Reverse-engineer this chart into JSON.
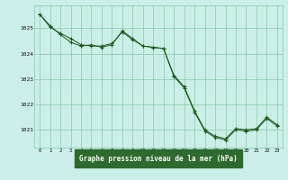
{
  "title": "Graphe pression niveau de la mer (hPa)",
  "background_color": "#cceee8",
  "grid_color": "#88ccaa",
  "line_color": "#1a5c1a",
  "label_bg": "#2d6a2d",
  "label_fg": "#ffffff",
  "xlim": [
    -0.5,
    23.5
  ],
  "ylim": [
    1020.3,
    1025.9
  ],
  "yticks": [
    1021,
    1022,
    1023,
    1024,
    1025
  ],
  "xticks": [
    0,
    1,
    2,
    3,
    4,
    5,
    6,
    7,
    8,
    9,
    10,
    11,
    12,
    13,
    14,
    15,
    16,
    17,
    18,
    19,
    20,
    21,
    22,
    23
  ],
  "series1_x": [
    0,
    1,
    2,
    3,
    4,
    5,
    6,
    7,
    8,
    9,
    10,
    11,
    12,
    13,
    14,
    15,
    16,
    17,
    18,
    19,
    20,
    21,
    22,
    23
  ],
  "series1_y": [
    1025.55,
    1025.05,
    1024.8,
    1024.6,
    1024.35,
    1024.3,
    1024.3,
    1024.4,
    1024.85,
    1024.55,
    1024.3,
    1024.25,
    1024.2,
    1023.1,
    1022.65,
    1021.7,
    1020.95,
    1020.7,
    1020.6,
    1021.0,
    1020.95,
    1021.0,
    1021.45,
    1021.15
  ],
  "series2_x": [
    0,
    1,
    2,
    3,
    4,
    5,
    6,
    7,
    8,
    9,
    10,
    11,
    12,
    13,
    14,
    15,
    16,
    17,
    18,
    19,
    20,
    21,
    22,
    23
  ],
  "series2_y": [
    1025.55,
    1025.1,
    1024.75,
    1024.45,
    1024.3,
    1024.35,
    1024.25,
    1024.35,
    1024.9,
    1024.6,
    1024.3,
    1024.25,
    1024.2,
    1023.15,
    1022.7,
    1021.75,
    1021.0,
    1020.75,
    1020.65,
    1021.05,
    1021.0,
    1021.05,
    1021.5,
    1021.2
  ]
}
